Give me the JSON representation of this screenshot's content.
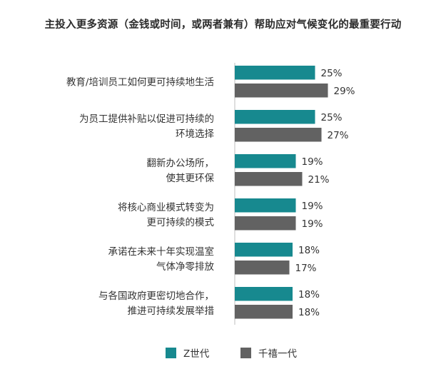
{
  "chart_data": {
    "type": "bar",
    "orientation": "horizontal",
    "title": "主投入更多资源（金钱或时间，或两者兼有）帮助应对气候变化的最重要行动",
    "categories": [
      [
        "教育/培训员工如何更可持续地生活"
      ],
      [
        "为员工提供补贴以促进可持续的",
        "环境选择"
      ],
      [
        "翻新办公场所，",
        "使其更环保"
      ],
      [
        "将核心商业模式转变为",
        "更可持续的模式"
      ],
      [
        "承诺在未来十年实现温室",
        "气体净零排放"
      ],
      [
        "与各国政府更密切地合作，",
        "推进可持续发展举措"
      ]
    ],
    "series": [
      {
        "name": "Z世代",
        "color": "#17898f",
        "values": [
          25,
          25,
          19,
          19,
          18,
          18
        ]
      },
      {
        "name": "千禧一代",
        "color": "#626262",
        "values": [
          29,
          27,
          21,
          19,
          17,
          18
        ]
      }
    ],
    "value_suffix": "%",
    "legend_position": "bottom",
    "grid": false
  }
}
